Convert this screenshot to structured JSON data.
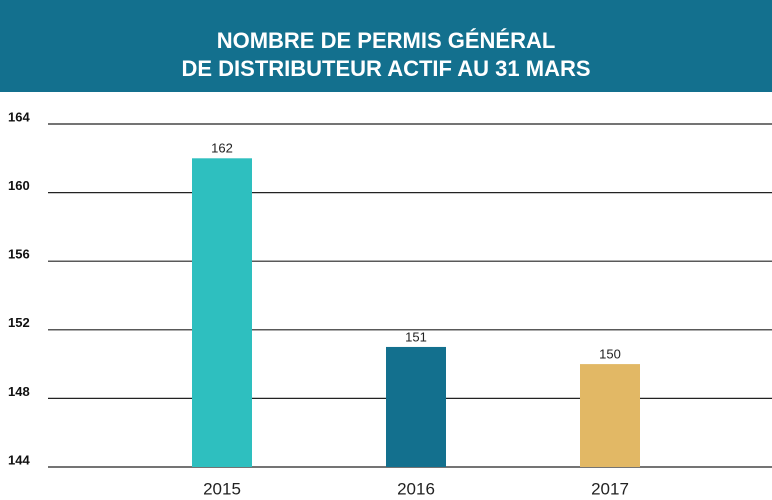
{
  "chart_data": {
    "type": "bar",
    "title": [
      "NOMBRE DE PERMIS GÉNÉRAL",
      "DE DISTRIBUTEUR ACTIF AU 31 MARS"
    ],
    "categories": [
      "2015",
      "2016",
      "2017"
    ],
    "values": [
      162,
      151,
      150
    ],
    "colors": [
      "#2ebfbf",
      "#13708e",
      "#e2b865"
    ],
    "ylim": [
      144,
      164
    ],
    "yticks": [
      144,
      148,
      152,
      156,
      160,
      164
    ],
    "grid": true
  }
}
